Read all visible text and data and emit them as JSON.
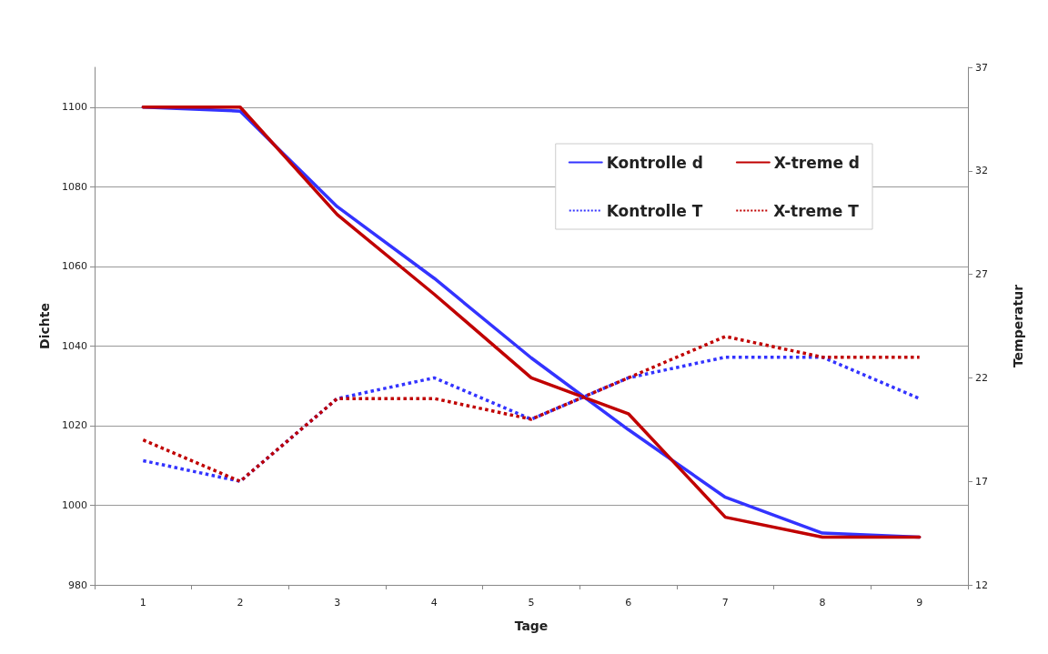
{
  "chart_data": {
    "type": "line",
    "xlabel": "Tage",
    "ylabel": "Dichte",
    "y2label": "Temperatur",
    "categories": [
      "1",
      "2",
      "3",
      "4",
      "5",
      "6",
      "7",
      "8",
      "9"
    ],
    "series": [
      {
        "name": "Kontrolle d",
        "color": "#3333ff",
        "line_style": "solid",
        "values": [
          1100,
          1099,
          1075,
          1057,
          1037,
          1019,
          1002,
          993,
          992
        ]
      },
      {
        "name": "X-treme d",
        "color": "#c00000",
        "line_style": "solid",
        "values": [
          1100,
          1100,
          1073,
          1053,
          1032,
          1023,
          997,
          992,
          992
        ]
      },
      {
        "name": "Kontrolle T",
        "color": "#3333ff",
        "line_style": "dotted",
        "axis": "y2",
        "values": [
          18,
          17,
          21,
          22,
          20,
          22,
          23,
          23,
          21
        ]
      },
      {
        "name": "X-treme T",
        "color": "#c00000",
        "line_style": "dotted",
        "axis": "y2",
        "values": [
          19,
          17,
          21,
          21,
          20,
          22,
          24,
          23,
          23
        ]
      }
    ],
    "ylim": [
      980,
      1110
    ],
    "yticks": [
      980,
      1000,
      1020,
      1040,
      1060,
      1080,
      1100
    ],
    "y2lim": [
      12,
      37
    ],
    "y2ticks": [
      12,
      17,
      22,
      27,
      32,
      37
    ],
    "grid": "y",
    "legend": "top right",
    "marker": "none"
  }
}
